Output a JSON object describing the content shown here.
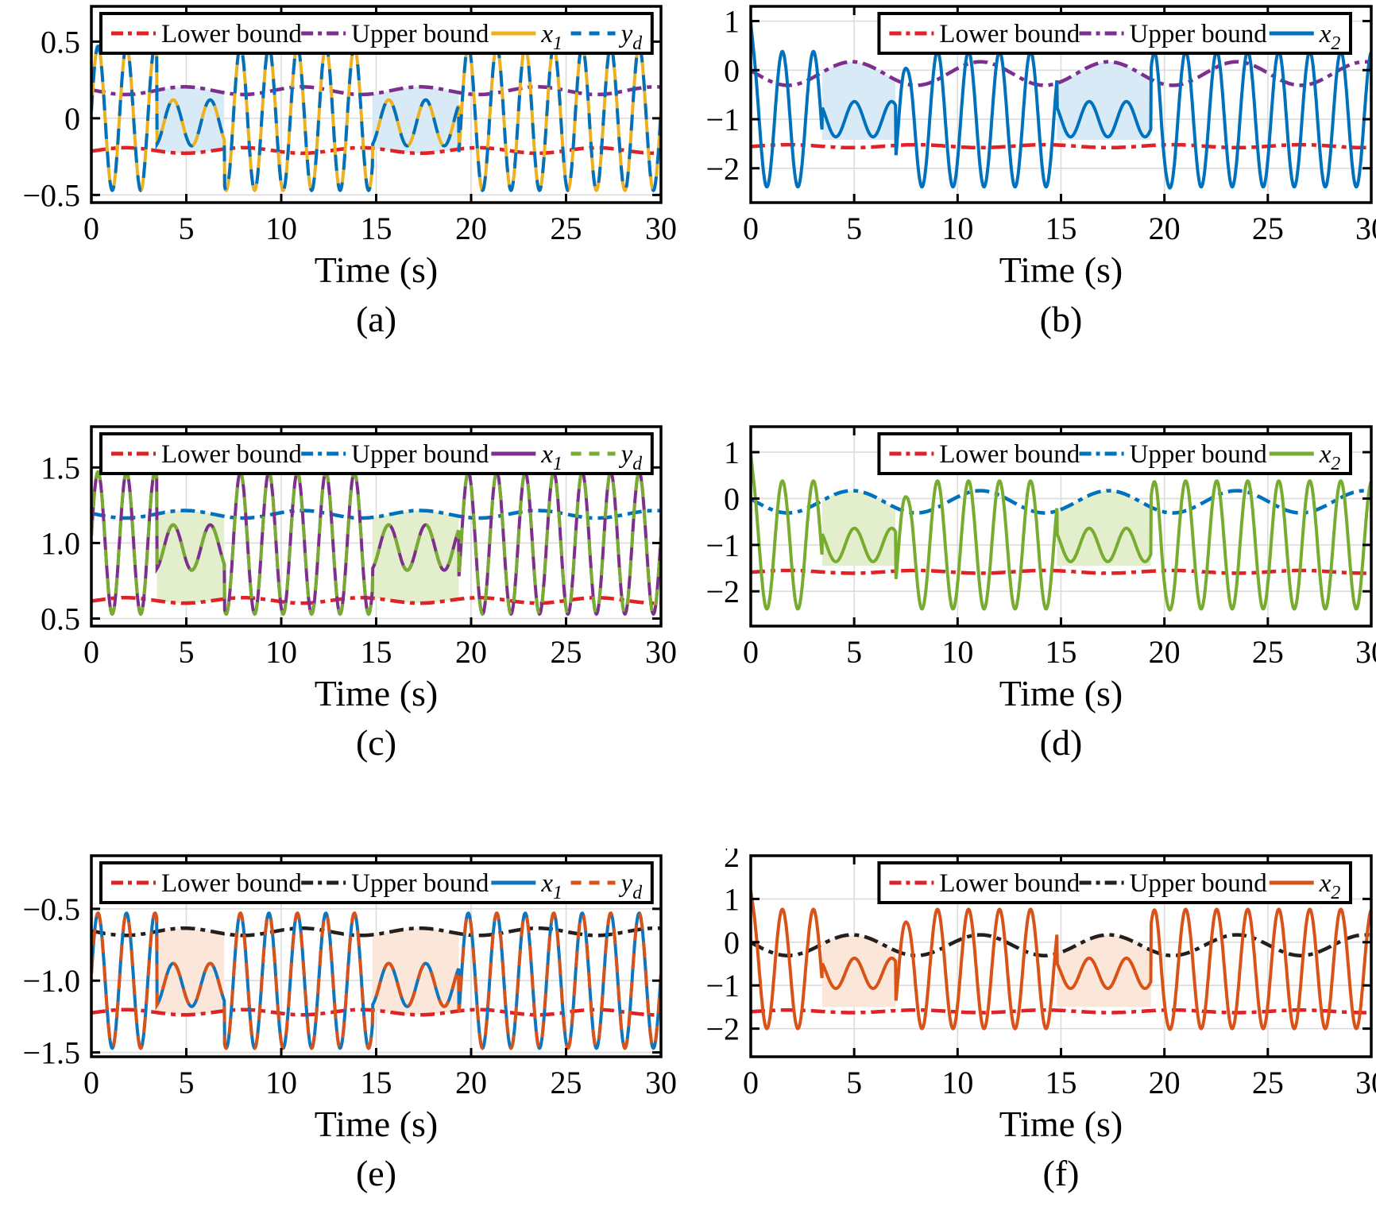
{
  "figure": {
    "title": "",
    "xlabel": "Time (s)",
    "x_range": [
      0,
      30
    ],
    "x_tick_values": [
      0,
      5,
      10,
      15,
      20,
      25,
      30
    ],
    "x_tick_labels": [
      "0",
      "5",
      "10",
      "15",
      "20",
      "25",
      "30"
    ],
    "slow_regions": [
      [
        3.45,
        7.0
      ],
      [
        14.8,
        19.35
      ]
    ],
    "grid_color": "#dcdcdc",
    "axis_color": "#000000",
    "background": "#ffffff"
  },
  "chart_data": [
    {
      "id": "a",
      "type": "line",
      "caption": "(a)",
      "xlabel": "Time (s)",
      "x_tick_labels": [
        "0",
        "5",
        "10",
        "15",
        "20",
        "25",
        "30"
      ],
      "ylim": [
        -0.55,
        0.73
      ],
      "y_ticks": [
        {
          "v": 0.5,
          "label": "0.5"
        },
        {
          "v": 0,
          "label": "0"
        },
        {
          "v": -0.5,
          "label": "−0.5"
        }
      ],
      "band": {
        "regions": [
          [
            3.45,
            7.0
          ],
          [
            14.8,
            19.35
          ]
        ],
        "color": "#d9eaf7",
        "top": "upper",
        "bottom": "lower"
      },
      "legend_position": "full-width-top",
      "series": [
        {
          "name": "Lower bound",
          "color": "#e02126",
          "line": "dashdot",
          "width": 4.5,
          "model": {
            "kind": "bound",
            "c": -0.21,
            "A": -0.018,
            "T": 6.2,
            "peak_t": 4.9
          }
        },
        {
          "name": "Upper bound",
          "color": "#7E2F8E",
          "line": "dashdot",
          "width": 4.5,
          "model": {
            "kind": "bound",
            "c": 0.18,
            "A": 0.025,
            "T": 6.2,
            "peak_t": 4.9
          }
        },
        {
          "name": "x_1",
          "color": "#EDB120",
          "line": "solid",
          "width": 4,
          "model": {
            "kind": "traj",
            "fast": {
              "c": 0,
              "A": 0.47,
              "T": 1.5,
              "phi": 0.1
            },
            "slow": {
              "c": -0.03,
              "A": 0.15,
              "T": 1.95,
              "phi": -1.2
            },
            "regions": [
              [
                3.45,
                7.0
              ],
              [
                14.8,
                19.35
              ]
            ]
          }
        },
        {
          "name": "y_d",
          "color": "#0072BD",
          "line": "dashed",
          "width": 4,
          "model": {
            "kind": "traj",
            "fast": {
              "c": 0,
              "A": 0.47,
              "T": 1.5,
              "phi": 0.1
            },
            "slow": {
              "c": -0.03,
              "A": 0.15,
              "T": 1.95,
              "phi": -1.2
            },
            "regions": [
              [
                3.45,
                7.0
              ],
              [
                14.8,
                19.35
              ]
            ]
          }
        }
      ]
    },
    {
      "id": "b",
      "type": "line",
      "caption": "(b)",
      "xlabel": "Time (s)",
      "x_tick_labels": [
        "0",
        "5",
        "10",
        "15",
        "20",
        "25",
        "30"
      ],
      "ylim": [
        -2.7,
        1.3
      ],
      "y_ticks": [
        {
          "v": 1,
          "label": "1"
        },
        {
          "v": 0,
          "label": "0"
        },
        {
          "v": -1,
          "label": "−1"
        },
        {
          "v": -2,
          "label": "−2"
        }
      ],
      "band": {
        "regions": [
          [
            3.45,
            7.0
          ],
          [
            14.8,
            19.35
          ]
        ],
        "color": "#d9eaf7",
        "top": "upper",
        "bottom": {
          "flat": -1.42
        }
      },
      "legend_position": "right-top",
      "series": [
        {
          "name": "Lower bound",
          "color": "#e02126",
          "line": "dashdot",
          "width": 4.5,
          "model": {
            "kind": "bound",
            "c": -1.55,
            "A": -0.03,
            "T": 6.2,
            "peak_t": 4.9
          }
        },
        {
          "name": "Upper bound",
          "color": "#7E2F8E",
          "line": "dashdot",
          "width": 4.5,
          "model": {
            "kind": "bound",
            "c": -0.07,
            "A": 0.24,
            "T": 6.2,
            "peak_t": 4.9
          }
        },
        {
          "name": "x_2",
          "color": "#0072BD",
          "line": "solid",
          "width": 4,
          "model": {
            "kind": "traj",
            "fast": {
              "c": -1.0,
              "A": 1.38,
              "T": 1.5,
              "phi": 1.45
            },
            "slow": {
              "c": -1.0,
              "A": 0.36,
              "T": 1.8,
              "phi": 2.4
            },
            "regions": [
              [
                3.45,
                7.0
              ],
              [
                14.8,
                19.35
              ]
            ],
            "start": {
              "y0": 1.0,
              "tau": 0.1
            },
            "spikes": [
              {
                "t": 7.55,
                "a": -0.35,
                "w": 0.22
              },
              {
                "t": 19.9,
                "a": -0.35,
                "w": 0.22
              }
            ]
          }
        }
      ]
    },
    {
      "id": "c",
      "type": "line",
      "caption": "(c)",
      "xlabel": "Time (s)",
      "x_tick_labels": [
        "0",
        "5",
        "10",
        "15",
        "20",
        "25",
        "30"
      ],
      "ylim": [
        0.45,
        1.77
      ],
      "y_ticks": [
        {
          "v": 1.5,
          "label": "1.5"
        },
        {
          "v": 1.0,
          "label": "1.0"
        },
        {
          "v": 0.5,
          "label": "0.5"
        }
      ],
      "band": {
        "regions": [
          [
            3.45,
            7.0
          ],
          [
            14.8,
            19.35
          ]
        ],
        "color": "#e3eecd",
        "top": "upper",
        "bottom": "lower"
      },
      "legend_position": "full-width-top",
      "series": [
        {
          "name": "Lower bound",
          "color": "#e02126",
          "line": "dashdot",
          "width": 4.5,
          "model": {
            "kind": "bound",
            "c": 0.62,
            "A": -0.018,
            "T": 6.2,
            "peak_t": 4.9
          }
        },
        {
          "name": "Upper bound",
          "color": "#0072BD",
          "line": "dashdot",
          "width": 4.5,
          "model": {
            "kind": "bound",
            "c": 1.19,
            "A": 0.025,
            "T": 6.2,
            "peak_t": 4.9
          }
        },
        {
          "name": "x_1",
          "color": "#7E2F8E",
          "line": "solid",
          "width": 4,
          "model": {
            "kind": "traj",
            "fast": {
              "c": 1.0,
              "A": 0.47,
              "T": 1.5,
              "phi": 0.1
            },
            "slow": {
              "c": 0.97,
              "A": 0.15,
              "T": 1.95,
              "phi": -1.2
            },
            "regions": [
              [
                3.45,
                7.0
              ],
              [
                14.8,
                19.35
              ]
            ]
          }
        },
        {
          "name": "y_d",
          "color": "#77AC30",
          "line": "dashed",
          "width": 4,
          "model": {
            "kind": "traj",
            "fast": {
              "c": 1.0,
              "A": 0.47,
              "T": 1.5,
              "phi": 0.1
            },
            "slow": {
              "c": 0.97,
              "A": 0.15,
              "T": 1.95,
              "phi": -1.2
            },
            "regions": [
              [
                3.45,
                7.0
              ],
              [
                14.8,
                19.35
              ]
            ]
          }
        }
      ]
    },
    {
      "id": "d",
      "type": "line",
      "caption": "(d)",
      "xlabel": "Time (s)",
      "x_tick_labels": [
        "0",
        "5",
        "10",
        "15",
        "20",
        "25",
        "30"
      ],
      "ylim": [
        -2.75,
        1.55
      ],
      "y_ticks": [
        {
          "v": 1,
          "label": "1"
        },
        {
          "v": 0,
          "label": "0"
        },
        {
          "v": -1,
          "label": "−1"
        },
        {
          "v": -2,
          "label": "−2"
        }
      ],
      "band": {
        "regions": [
          [
            3.45,
            7.0
          ],
          [
            14.8,
            19.35
          ]
        ],
        "color": "#e3eecd",
        "top": "upper",
        "bottom": {
          "flat": -1.45
        }
      },
      "legend_position": "right-top",
      "series": [
        {
          "name": "Lower bound",
          "color": "#e02126",
          "line": "dashdot",
          "width": 4.5,
          "model": {
            "kind": "bound",
            "c": -1.58,
            "A": -0.03,
            "T": 6.2,
            "peak_t": 4.9
          }
        },
        {
          "name": "Upper bound",
          "color": "#0072BD",
          "line": "dashdot",
          "width": 4.5,
          "model": {
            "kind": "bound",
            "c": -0.07,
            "A": 0.24,
            "T": 6.2,
            "peak_t": 4.9
          }
        },
        {
          "name": "x_2",
          "color": "#77AC30",
          "line": "solid",
          "width": 4,
          "model": {
            "kind": "traj",
            "fast": {
              "c": -1.0,
              "A": 1.38,
              "T": 1.5,
              "phi": 1.45
            },
            "slow": {
              "c": -1.0,
              "A": 0.36,
              "T": 1.8,
              "phi": 2.4
            },
            "regions": [
              [
                3.45,
                7.0
              ],
              [
                14.8,
                19.35
              ]
            ],
            "start": {
              "y0": 1.0,
              "tau": 0.1
            },
            "spikes": [
              {
                "t": 7.55,
                "a": -0.35,
                "w": 0.22
              },
              {
                "t": 19.9,
                "a": -0.35,
                "w": 0.22
              }
            ]
          }
        }
      ]
    },
    {
      "id": "e",
      "type": "line",
      "caption": "(e)",
      "xlabel": "Time (s)",
      "x_tick_labels": [
        "0",
        "5",
        "10",
        "15",
        "20",
        "25",
        "30"
      ],
      "ylim": [
        -1.53,
        -0.13
      ],
      "y_ticks": [
        {
          "v": -0.5,
          "label": "−0.5"
        },
        {
          "v": -1.0,
          "label": "−1.0"
        },
        {
          "v": -1.5,
          "label": "−1.5"
        }
      ],
      "band": {
        "regions": [
          [
            3.45,
            7.0
          ],
          [
            14.8,
            19.35
          ]
        ],
        "color": "#fbe7d9",
        "top": "upper",
        "bottom": "lower"
      },
      "legend_position": "full-width-top",
      "series": [
        {
          "name": "Lower bound",
          "color": "#e02126",
          "line": "dashdot",
          "width": 4.5,
          "model": {
            "kind": "bound",
            "c": -1.22,
            "A": -0.018,
            "T": 6.2,
            "peak_t": 4.9
          }
        },
        {
          "name": "Upper bound",
          "color": "#241f1c",
          "line": "dashdot",
          "width": 4.5,
          "model": {
            "kind": "bound",
            "c": -0.66,
            "A": 0.025,
            "T": 6.2,
            "peak_t": 4.9
          }
        },
        {
          "name": "x_1",
          "color": "#0e76bd",
          "line": "solid",
          "width": 4,
          "model": {
            "kind": "traj",
            "fast": {
              "c": -1.0,
              "A": 0.47,
              "T": 1.5,
              "phi": 0.1
            },
            "slow": {
              "c": -1.03,
              "A": 0.15,
              "T": 1.95,
              "phi": -1.2
            },
            "regions": [
              [
                3.45,
                7.0
              ],
              [
                14.8,
                19.35
              ]
            ]
          }
        },
        {
          "name": "y_d",
          "color": "#D95319",
          "line": "dashed",
          "width": 4,
          "model": {
            "kind": "traj",
            "fast": {
              "c": -1.0,
              "A": 0.47,
              "T": 1.5,
              "phi": 0.1
            },
            "slow": {
              "c": -1.03,
              "A": 0.15,
              "T": 1.95,
              "phi": -1.2
            },
            "regions": [
              [
                3.45,
                7.0
              ],
              [
                14.8,
                19.35
              ]
            ]
          }
        }
      ]
    },
    {
      "id": "f",
      "type": "line",
      "caption": "(f)",
      "xlabel": "Time (s)",
      "x_tick_labels": [
        "0",
        "5",
        "10",
        "15",
        "20",
        "25",
        "30"
      ],
      "ylim": [
        -2.65,
        2.0
      ],
      "y_ticks": [
        {
          "v": 2,
          "label": "2"
        },
        {
          "v": 1,
          "label": "1"
        },
        {
          "v": 0,
          "label": "0"
        },
        {
          "v": -1,
          "label": "−1"
        },
        {
          "v": -2,
          "label": "−2"
        }
      ],
      "band": {
        "regions": [
          [
            3.45,
            7.0
          ],
          [
            14.8,
            19.35
          ]
        ],
        "color": "#fbe7d9",
        "top": "upper",
        "bottom": {
          "flat": -1.5
        }
      },
      "legend_position": "right-top",
      "series": [
        {
          "name": "Lower bound",
          "color": "#e02126",
          "line": "dashdot",
          "width": 4.5,
          "model": {
            "kind": "bound",
            "c": -1.6,
            "A": -0.03,
            "T": 6.2,
            "peak_t": 4.9
          }
        },
        {
          "name": "Upper bound",
          "color": "#241f1c",
          "line": "dashdot",
          "width": 4.5,
          "model": {
            "kind": "bound",
            "c": -0.07,
            "A": 0.24,
            "T": 6.2,
            "peak_t": 4.9
          }
        },
        {
          "name": "x_2",
          "color": "#D95319",
          "line": "solid",
          "width": 4,
          "model": {
            "kind": "traj",
            "fast": {
              "c": -0.62,
              "A": 1.38,
              "T": 1.5,
              "phi": 1.45
            },
            "slow": {
              "c": -0.72,
              "A": 0.35,
              "T": 1.8,
              "phi": 2.4
            },
            "regions": [
              [
                3.45,
                7.0
              ],
              [
                14.8,
                19.35
              ]
            ],
            "start": {
              "y0": 1.2,
              "tau": 0.1
            },
            "spikes": [
              {
                "t": 7.55,
                "a": -0.3,
                "w": 0.22
              },
              {
                "t": 19.9,
                "a": -0.3,
                "w": 0.22
              }
            ]
          }
        }
      ]
    }
  ]
}
